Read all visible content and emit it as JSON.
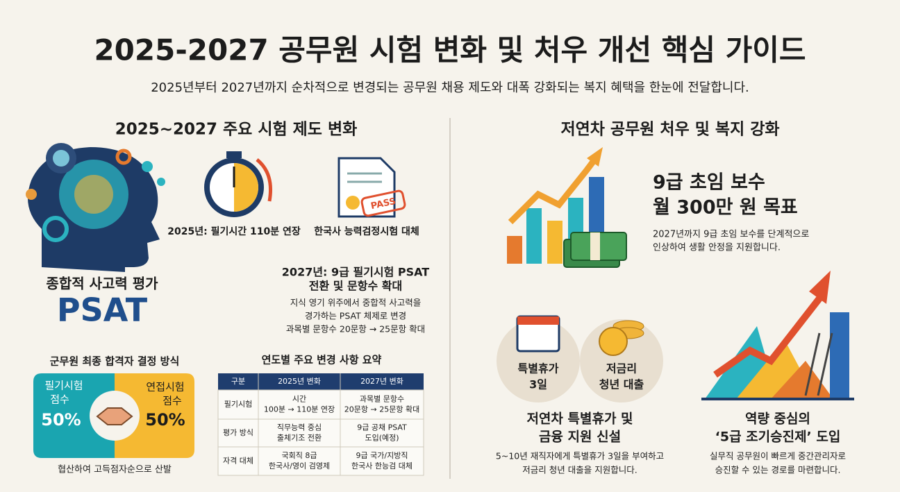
{
  "header": {
    "title": "2025-2027 공무원 시험 변화 및 처우 개선 핵심 가이드",
    "subtitle": "2025년부터 2027년까지 순차적으로 변경되는 공무원 채용 제도와 대폭 강화되는 복지 혜택을 한눈에 전달합니다."
  },
  "left": {
    "section_title": "2025~2027 주요 시험 제도 변화",
    "psat_label": "종합적 사고력 평가",
    "psat_name": "PSAT",
    "items": [
      "2025년: 필기시간 110분 연장",
      "한국사 능력검정시험 대체"
    ],
    "stamp": "PASS",
    "change_2027": {
      "title": [
        "2027년: 9급 필기시험 PSAT",
        "전환 및 문항수 확대"
      ],
      "description": [
        "지식 영기 위주에서 중합적 사고력을",
        "경가하는 PSAT 체제로 변경",
        "과목별 문항수 20문항 → 25문항 확대"
      ]
    },
    "decision": {
      "title": "군무원 최종 합격자 결정 방식",
      "written": {
        "label": [
          "필기시험",
          "점수"
        ],
        "share": "50%"
      },
      "interview": {
        "label": [
          "연접시험",
          "점수"
        ],
        "share": "50%"
      },
      "caption": "협산하여 고득점자순으로 산발"
    },
    "table": {
      "title": "연도별 주요 변경 사항 요약",
      "header": [
        "구분",
        "2025년 변화",
        "2027년 변화"
      ],
      "rows": [
        [
          "필기시험",
          [
            "시간",
            "100분 → 110분 연장"
          ],
          [
            "과목별 문항수",
            "20문항 → 25문항 확대"
          ]
        ],
        [
          "평가 방식",
          [
            "직무능력 중심",
            "출체기조 전환"
          ],
          [
            "9급 공채 PSAT",
            "도입(예정)"
          ]
        ],
        [
          "자격 대체",
          [
            "국회직 8급",
            "한국사/영이 검영제"
          ],
          [
            "9급 국가/지방직",
            "한국사 한능검 대체"
          ]
        ]
      ]
    }
  },
  "right": {
    "section_title": "저연차 공무원 처우 및 복지 강화",
    "pay": {
      "title": [
        "9급 초임 보수",
        "월 300만 원 목표"
      ],
      "description": [
        "2027년까지 9급 초임 보수를 단계적으로",
        "인상하여 생활 안정을 지원합니다."
      ]
    },
    "badges": [
      [
        "특별휴가",
        "3일"
      ],
      [
        "저금리",
        "청년 대출"
      ]
    ],
    "leave": {
      "title": [
        "저연차 특별휴가 및",
        "금융 지원 신설"
      ],
      "description": [
        "5~10년 재직자에게 특별휴가 3일을 부여하고",
        "저금리 청년 대출을 지원합니다."
      ]
    },
    "promotion": {
      "title": [
        "역량 중심의",
        "‘5급 조기승진제’ 도입"
      ],
      "description": [
        "실무직 공무원이 빠르게 중간관리자로",
        "승진할 수 있는 경로를 마련합니다."
      ]
    }
  }
}
